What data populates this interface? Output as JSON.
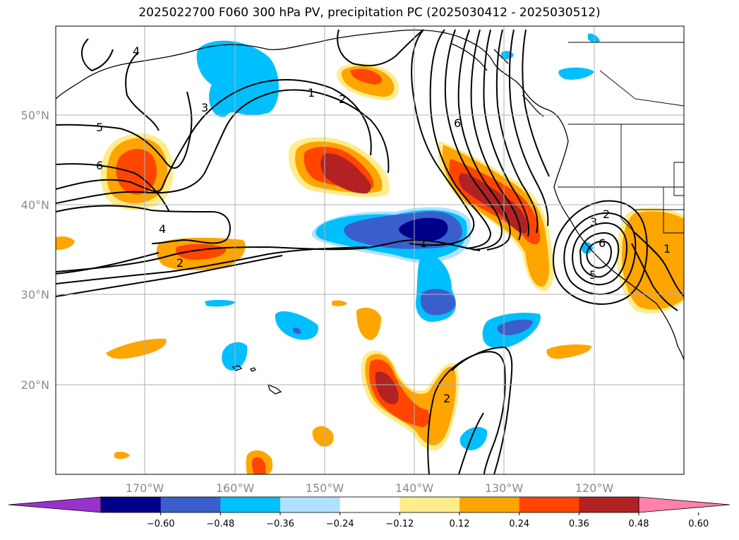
{
  "title": "2025022700 F060 300 hPa PV, precipitation PC (2025030412 - 2025030512)",
  "lat_labels": [
    "50°N",
    "40°N",
    "30°N",
    "20°N"
  ],
  "lon_labels": [
    "170°W",
    "160°W",
    "150°W",
    "140°W",
    "130°W",
    "120°W"
  ],
  "colorbar": {
    "ticks": [
      "−0.60",
      "−0.48",
      "−0.36",
      "−0.24",
      "−0.12",
      "0.12",
      "0.24",
      "0.36",
      "0.48",
      "0.60"
    ],
    "colors": [
      "#9932cc",
      "#00008b",
      "#3a5fcd",
      "#00bfff",
      "#b0e2ff",
      "#ffffff",
      "#ffec8b",
      "#ffa500",
      "#ff4500",
      "#b22222",
      "#ff82ab"
    ]
  },
  "pv_contour_labels": [
    "1",
    "2",
    "3",
    "4",
    "5",
    "6",
    "1",
    "2",
    "3",
    "5",
    "6",
    "2",
    "4",
    "2",
    "1",
    "6"
  ],
  "colors": {
    "land": "#000000",
    "grid": "#b0b0b0"
  }
}
